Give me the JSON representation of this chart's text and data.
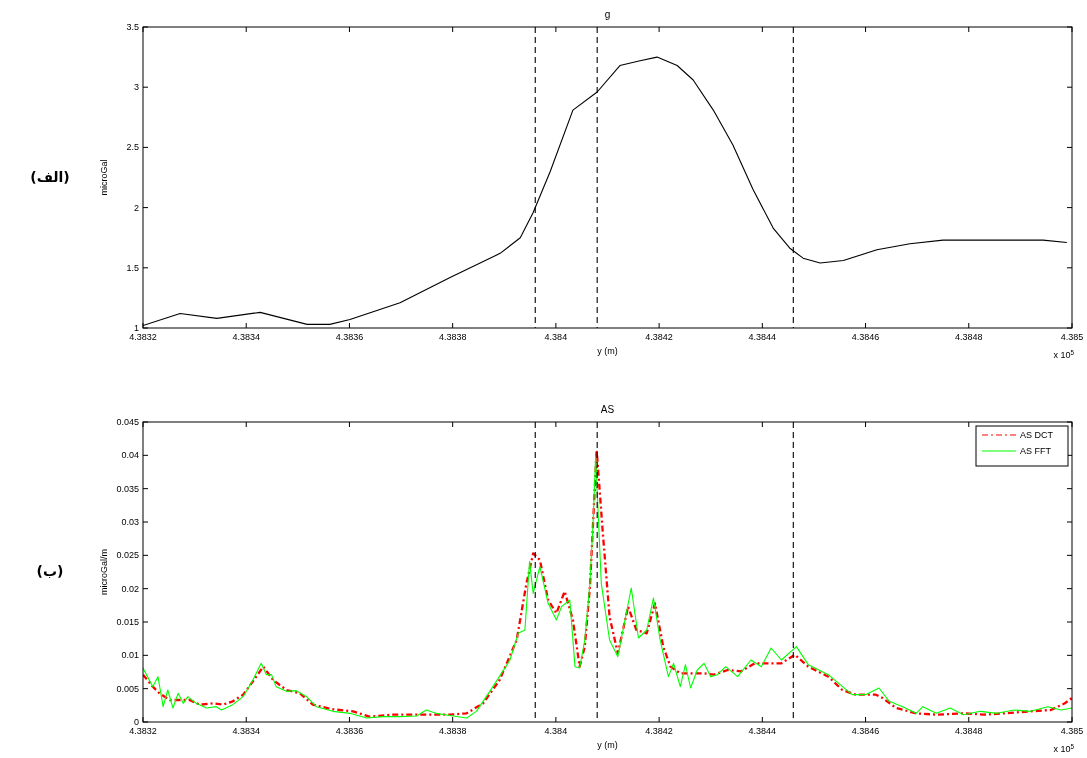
{
  "chart_data": [
    {
      "type": "line",
      "title": "g",
      "xlabel": "y (m)",
      "ylabel": "microGal",
      "annotations": [
        "x 10$^{5}$",
        "(الف)"
      ],
      "x": [
        4.3832,
        4.383272,
        4.383343,
        4.383427,
        4.383518,
        4.383562,
        4.383601,
        4.383698,
        4.383795,
        4.383892,
        4.383931,
        4.383956,
        4.383989,
        4.384033,
        4.38408,
        4.384124,
        4.384163,
        4.384196,
        4.384235,
        4.384266,
        4.384305,
        4.384343,
        4.384382,
        4.384421,
        4.384454,
        4.384479,
        4.384512,
        4.384557,
        4.384622,
        4.384686,
        4.38475,
        4.384944,
        4.38499
      ],
      "values": [
        1.02,
        1.12,
        1.08,
        1.13,
        1.03,
        1.03,
        1.07,
        1.21,
        1.42,
        1.62,
        1.75,
        1.96,
        2.3,
        2.81,
        2.96,
        3.18,
        3.22,
        3.25,
        3.18,
        3.06,
        2.81,
        2.52,
        2.15,
        1.83,
        1.66,
        1.58,
        1.54,
        1.56,
        1.65,
        1.7,
        1.73,
        1.73,
        1.71
      ],
      "color": "#000000",
      "line_style": "solid",
      "marker": "none",
      "xlim": [
        4.3832,
        4.385
      ],
      "xticks": [
        4.3832,
        4.3834,
        4.3836,
        4.3838,
        4.384,
        4.3842,
        4.3844,
        4.3846,
        4.3848,
        4.385
      ],
      "ylim": [
        1,
        3.5
      ],
      "yticks": [
        1,
        1.5,
        2,
        2.5,
        3,
        3.5
      ],
      "grid": false,
      "legend": false,
      "ref_lines": [
        {
          "axis": "x",
          "value": 4.38396,
          "color": "#000000",
          "line_style": "dashed"
        },
        {
          "axis": "x",
          "value": 4.38408,
          "color": "#000000",
          "line_style": "dashed"
        },
        {
          "axis": "x",
          "value": 4.38446,
          "color": "#000000",
          "line_style": "dashed"
        }
      ]
    },
    {
      "type": "line",
      "title": "AS",
      "xlabel": "y (m)",
      "ylabel": "microGal/m",
      "annotations": [
        "x 10$^{5}$",
        "(ب)"
      ],
      "series": [
        {
          "name": "AS DCT",
          "color": "#ff0000",
          "line_style": "dashdot",
          "x": [
            4.3832,
            4.383219,
            4.383232,
            4.383252,
            4.383271,
            4.38329,
            4.38331,
            4.383336,
            4.383355,
            4.383374,
            4.383394,
            4.383413,
            4.383433,
            4.383452,
            4.383478,
            4.383504,
            4.383529,
            4.383568,
            4.383607,
            4.383639,
            4.383685,
            4.38373,
            4.383762,
            4.383794,
            4.383827,
            4.383859,
            4.383891,
            4.383924,
            4.383943,
            4.383956,
            4.383969,
            4.383985,
            4.384001,
            4.384017,
            4.384033,
            4.384046,
            4.384056,
            4.384066,
            4.384079,
            4.384091,
            4.384104,
            4.38412,
            4.38414,
            4.384156,
            4.384176,
            4.384192,
            4.384208,
            4.384222,
            4.384241,
            4.384261,
            4.384287,
            4.384306,
            4.384333,
            4.384359,
            4.384385,
            4.384411,
            4.384437,
            4.384463,
            4.384489,
            4.384528,
            4.384555,
            4.384581,
            4.38462,
            4.384633,
            4.384659,
            4.384698,
            4.384737,
            4.38479,
            4.384829,
            4.384868,
            4.38492,
            4.384959,
            4.384986,
            4.385
          ],
          "values": [
            0.0071,
            0.0053,
            0.0043,
            0.0033,
            0.0033,
            0.0033,
            0.0026,
            0.0028,
            0.0026,
            0.0031,
            0.0041,
            0.0061,
            0.0083,
            0.0063,
            0.0048,
            0.0043,
            0.0026,
            0.0019,
            0.0016,
            0.0008,
            0.0011,
            0.0011,
            0.0011,
            0.0011,
            0.0013,
            0.0028,
            0.0063,
            0.0123,
            0.0208,
            0.0253,
            0.0243,
            0.0183,
            0.0163,
            0.0196,
            0.0153,
            0.0083,
            0.0113,
            0.0203,
            0.0408,
            0.0283,
            0.0158,
            0.0103,
            0.0173,
            0.0138,
            0.0133,
            0.0178,
            0.0113,
            0.0083,
            0.0073,
            0.0073,
            0.0073,
            0.0071,
            0.0078,
            0.0076,
            0.0088,
            0.0088,
            0.0088,
            0.0101,
            0.0083,
            0.0068,
            0.0048,
            0.0041,
            0.0041,
            0.0036,
            0.0021,
            0.0013,
            0.0011,
            0.0013,
            0.0011,
            0.0013,
            0.0016,
            0.0018,
            0.0028,
            0.0036
          ]
        },
        {
          "name": "AS FFT",
          "color": "#00ff00",
          "line_style": "solid",
          "x": [
            4.3832,
            4.383219,
            4.383229,
            4.383239,
            4.383248,
            4.383258,
            4.383268,
            4.383278,
            4.383287,
            4.383303,
            4.383323,
            4.383342,
            4.383352,
            4.383374,
            4.383394,
            4.383413,
            4.383429,
            4.383439,
            4.383449,
            4.383458,
            4.383478,
            4.383497,
            4.383517,
            4.383536,
            4.383568,
            4.383601,
            4.383633,
            4.383665,
            4.383697,
            4.38373,
            4.383749,
            4.383768,
            4.383801,
            4.383827,
            4.383846,
            4.383878,
            4.383911,
            4.383927,
            4.38394,
            4.383949,
            4.383956,
            4.383969,
            4.383985,
            4.384001,
            4.384011,
            4.384027,
            4.384037,
            4.384046,
            4.384056,
            4.384066,
            4.384072,
            4.384077,
            4.384088,
            4.384104,
            4.38412,
            4.384146,
            4.38416,
            4.384176,
            4.384189,
            4.384202,
            4.384218,
            4.384228,
            4.384241,
            4.384251,
            4.384261,
            4.384274,
            4.384287,
            4.3843,
            4.384313,
            4.384329,
            4.384352,
            4.384378,
            4.384398,
            4.384417,
            4.384437,
            4.384466,
            4.384489,
            4.384528,
            4.384548,
            4.384574,
            4.3846,
            4.384626,
            4.384646,
            4.384672,
            4.384698,
            4.384711,
            4.384737,
            4.384764,
            4.38479,
            4.384822,
            4.384855,
            4.384888,
            4.38492,
            4.384953,
            4.384979,
            4.385
          ],
          "values": [
            0.0081,
            0.0053,
            0.0068,
            0.0023,
            0.0048,
            0.0021,
            0.0043,
            0.0028,
            0.0038,
            0.0028,
            0.0021,
            0.0023,
            0.0018,
            0.0026,
            0.0038,
            0.0063,
            0.0088,
            0.0071,
            0.0071,
            0.0053,
            0.0046,
            0.0047,
            0.0038,
            0.0023,
            0.0016,
            0.0013,
            0.0006,
            0.0008,
            0.0008,
            0.0009,
            0.0018,
            0.0013,
            0.0009,
            0.0006,
            0.0016,
            0.0053,
            0.0093,
            0.0133,
            0.0138,
            0.0241,
            0.0193,
            0.0233,
            0.0178,
            0.0153,
            0.0173,
            0.0183,
            0.0083,
            0.0081,
            0.0123,
            0.0208,
            0.0298,
            0.0398,
            0.0208,
            0.0123,
            0.0098,
            0.0201,
            0.0126,
            0.0138,
            0.0186,
            0.0123,
            0.0068,
            0.0088,
            0.0053,
            0.0086,
            0.0051,
            0.0078,
            0.0088,
            0.0068,
            0.0071,
            0.0083,
            0.0068,
            0.0093,
            0.0083,
            0.0111,
            0.0093,
            0.0113,
            0.0086,
            0.0071,
            0.0058,
            0.0041,
            0.0041,
            0.0051,
            0.0031,
            0.0023,
            0.0013,
            0.0023,
            0.0013,
            0.0021,
            0.0011,
            0.0016,
            0.0013,
            0.0018,
            0.0016,
            0.0023,
            0.0018,
            0.0021
          ]
        }
      ],
      "marker": "none",
      "legend": "top right",
      "xlim": [
        4.3832,
        4.385
      ],
      "xticks": [
        4.3832,
        4.3834,
        4.3836,
        4.3838,
        4.384,
        4.3842,
        4.3844,
        4.3846,
        4.3848,
        4.385
      ],
      "ylim": [
        0,
        0.045
      ],
      "yticks": [
        0,
        0.005,
        0.01,
        0.015,
        0.02,
        0.025,
        0.03,
        0.035,
        0.04,
        0.045
      ],
      "grid": false,
      "ref_lines": [
        {
          "axis": "x",
          "value": 4.38396,
          "color": "#000000",
          "line_style": "dashed"
        },
        {
          "axis": "x",
          "value": 4.38408,
          "color": "#000000",
          "line_style": "dashed"
        },
        {
          "axis": "x",
          "value": 4.38446,
          "color": "#000000",
          "line_style": "dashed"
        }
      ]
    }
  ]
}
